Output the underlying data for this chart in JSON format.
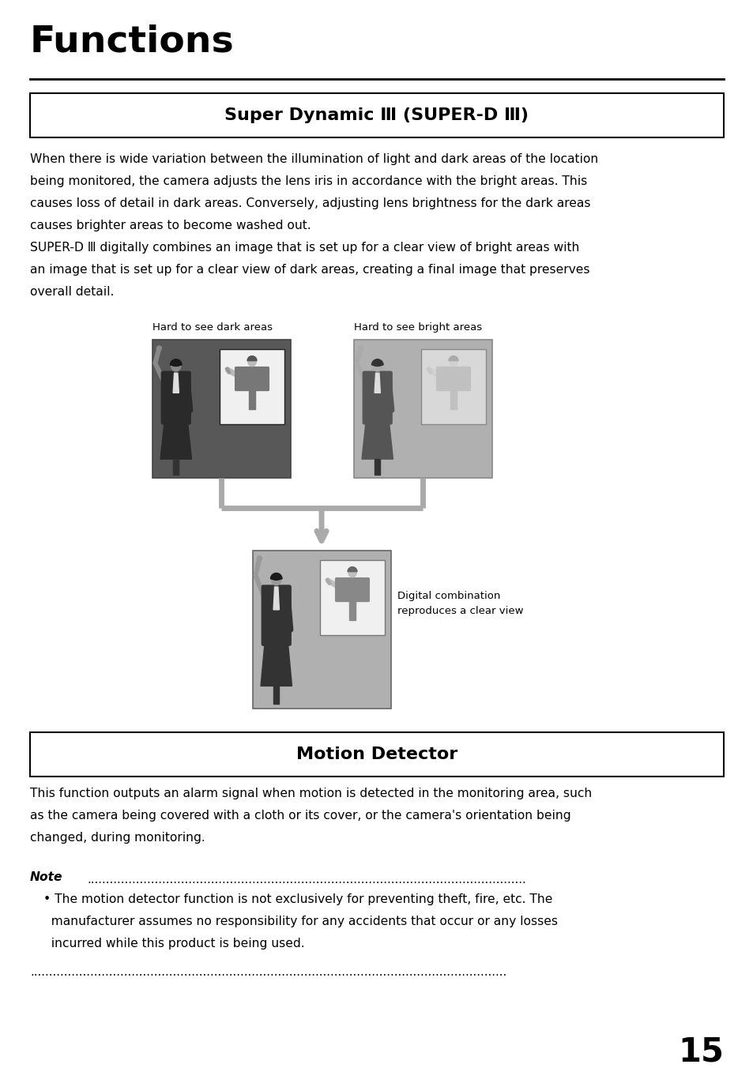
{
  "page_number": "15",
  "main_title": "Functions",
  "section1_title": "Super Dynamic Ⅲ (SUPER-D Ⅲ)",
  "section1_body1": "When there is wide variation between the illumination of light and dark areas of the location\nbeing monitored, the camera adjusts the lens iris in accordance with the bright areas. This\ncauses loss of detail in dark areas. Conversely, adjusting lens brightness for the dark areas\ncauses brighter areas to become washed out.",
  "section1_body2": "SUPER-D Ⅲ digitally combines an image that is set up for a clear view of bright areas with\nan image that is set up for a clear view of dark areas, creating a final image that preserves\noverall detail.",
  "label_dark": "Hard to see dark areas",
  "label_bright": "Hard to see bright areas",
  "label_result": "Digital combination\nreproduces a clear view",
  "section2_title": "Motion Detector",
  "section2_body": "This function outputs an alarm signal when motion is detected in the monitoring area, such\nas the camera being covered with a cloth or its cover, or the camera's orientation being\nchanged, during monitoring.",
  "note_label": "Note",
  "note_dots_top": ".....................................................................................................................",
  "note_bullet1": "• The motion detector function is not exclusively for preventing theft, fire, etc. The",
  "note_bullet2": "  manufacturer assumes no responsibility for any accidents that occur or any losses",
  "note_bullet3": "  incurred while this product is being used.",
  "note_dots_bottom": "...............................................................................................................................",
  "bg_color": "#ffffff",
  "text_color": "#000000",
  "box_border_color": "#000000",
  "dark_img_bg": "#585858",
  "bright_img_bg": "#b0b0b0",
  "result_img_bg": "#b0b0b0",
  "inner_box_white": "#f0f0f0",
  "inner_box_light": "#d8d8d8",
  "connector_color": "#aaaaaa"
}
